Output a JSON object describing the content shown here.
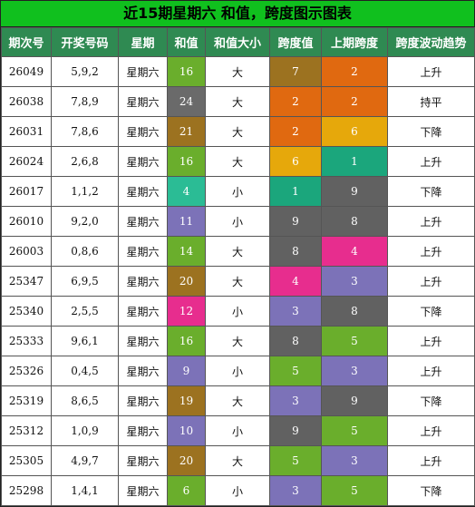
{
  "title": "近15期星期六 和值，跨度图示图表",
  "headers": [
    "期次号",
    "开奖号码",
    "星期",
    "和值",
    "和值大小",
    "跨度值",
    "上期跨度",
    "跨度波动趋势"
  ],
  "colors": {
    "header_bg": "#2f8a52",
    "title_bg": "#10c01e",
    "palette": {
      "4": "#2bbc95",
      "6": "#6aae2c",
      "9": "#7c72b8",
      "10": "#7c72b8",
      "11": "#7c72b8",
      "12": "#e72d8e",
      "14": "#6aae2c",
      "16": "#6aae2c",
      "19": "#9c7220",
      "20": "#9c7220",
      "21": "#9c7220",
      "24": "#6a6a6a",
      "span_1": "#1ba67c",
      "span_2": "#e06910",
      "span_3": "#7c72b8",
      "span_4": "#e72d8e",
      "span_5": "#6aae2c",
      "span_6": "#e6a80b",
      "span_7": "#9c7220",
      "span_8": "#616161",
      "span_9": "#616161"
    }
  },
  "rows": [
    {
      "issue": "26049",
      "numbers": "5,9,2",
      "weekday": "星期六",
      "sum": "16",
      "size": "大",
      "span": "7",
      "prev_span": "2",
      "trend": "上升"
    },
    {
      "issue": "26038",
      "numbers": "7,8,9",
      "weekday": "星期六",
      "sum": "24",
      "size": "大",
      "span": "2",
      "prev_span": "2",
      "trend": "持平"
    },
    {
      "issue": "26031",
      "numbers": "7,8,6",
      "weekday": "星期六",
      "sum": "21",
      "size": "大",
      "span": "2",
      "prev_span": "6",
      "trend": "下降"
    },
    {
      "issue": "26024",
      "numbers": "2,6,8",
      "weekday": "星期六",
      "sum": "16",
      "size": "大",
      "span": "6",
      "prev_span": "1",
      "trend": "上升"
    },
    {
      "issue": "26017",
      "numbers": "1,1,2",
      "weekday": "星期六",
      "sum": "4",
      "size": "小",
      "span": "1",
      "prev_span": "9",
      "trend": "下降"
    },
    {
      "issue": "26010",
      "numbers": "9,2,0",
      "weekday": "星期六",
      "sum": "11",
      "size": "小",
      "span": "9",
      "prev_span": "8",
      "trend": "上升"
    },
    {
      "issue": "26003",
      "numbers": "0,8,6",
      "weekday": "星期六",
      "sum": "14",
      "size": "大",
      "span": "8",
      "prev_span": "4",
      "trend": "上升"
    },
    {
      "issue": "25347",
      "numbers": "6,9,5",
      "weekday": "星期六",
      "sum": "20",
      "size": "大",
      "span": "4",
      "prev_span": "3",
      "trend": "上升"
    },
    {
      "issue": "25340",
      "numbers": "2,5,5",
      "weekday": "星期六",
      "sum": "12",
      "size": "小",
      "span": "3",
      "prev_span": "8",
      "trend": "下降"
    },
    {
      "issue": "25333",
      "numbers": "9,6,1",
      "weekday": "星期六",
      "sum": "16",
      "size": "大",
      "span": "8",
      "prev_span": "5",
      "trend": "上升"
    },
    {
      "issue": "25326",
      "numbers": "0,4,5",
      "weekday": "星期六",
      "sum": "9",
      "size": "小",
      "span": "5",
      "prev_span": "3",
      "trend": "上升"
    },
    {
      "issue": "25319",
      "numbers": "8,6,5",
      "weekday": "星期六",
      "sum": "19",
      "size": "大",
      "span": "3",
      "prev_span": "9",
      "trend": "下降"
    },
    {
      "issue": "25312",
      "numbers": "1,0,9",
      "weekday": "星期六",
      "sum": "10",
      "size": "小",
      "span": "9",
      "prev_span": "5",
      "trend": "上升"
    },
    {
      "issue": "25305",
      "numbers": "4,9,7",
      "weekday": "星期六",
      "sum": "20",
      "size": "大",
      "span": "5",
      "prev_span": "3",
      "trend": "上升"
    },
    {
      "issue": "25298",
      "numbers": "1,4,1",
      "weekday": "星期六",
      "sum": "6",
      "size": "小",
      "span": "3",
      "prev_span": "5",
      "trend": "下降"
    }
  ]
}
